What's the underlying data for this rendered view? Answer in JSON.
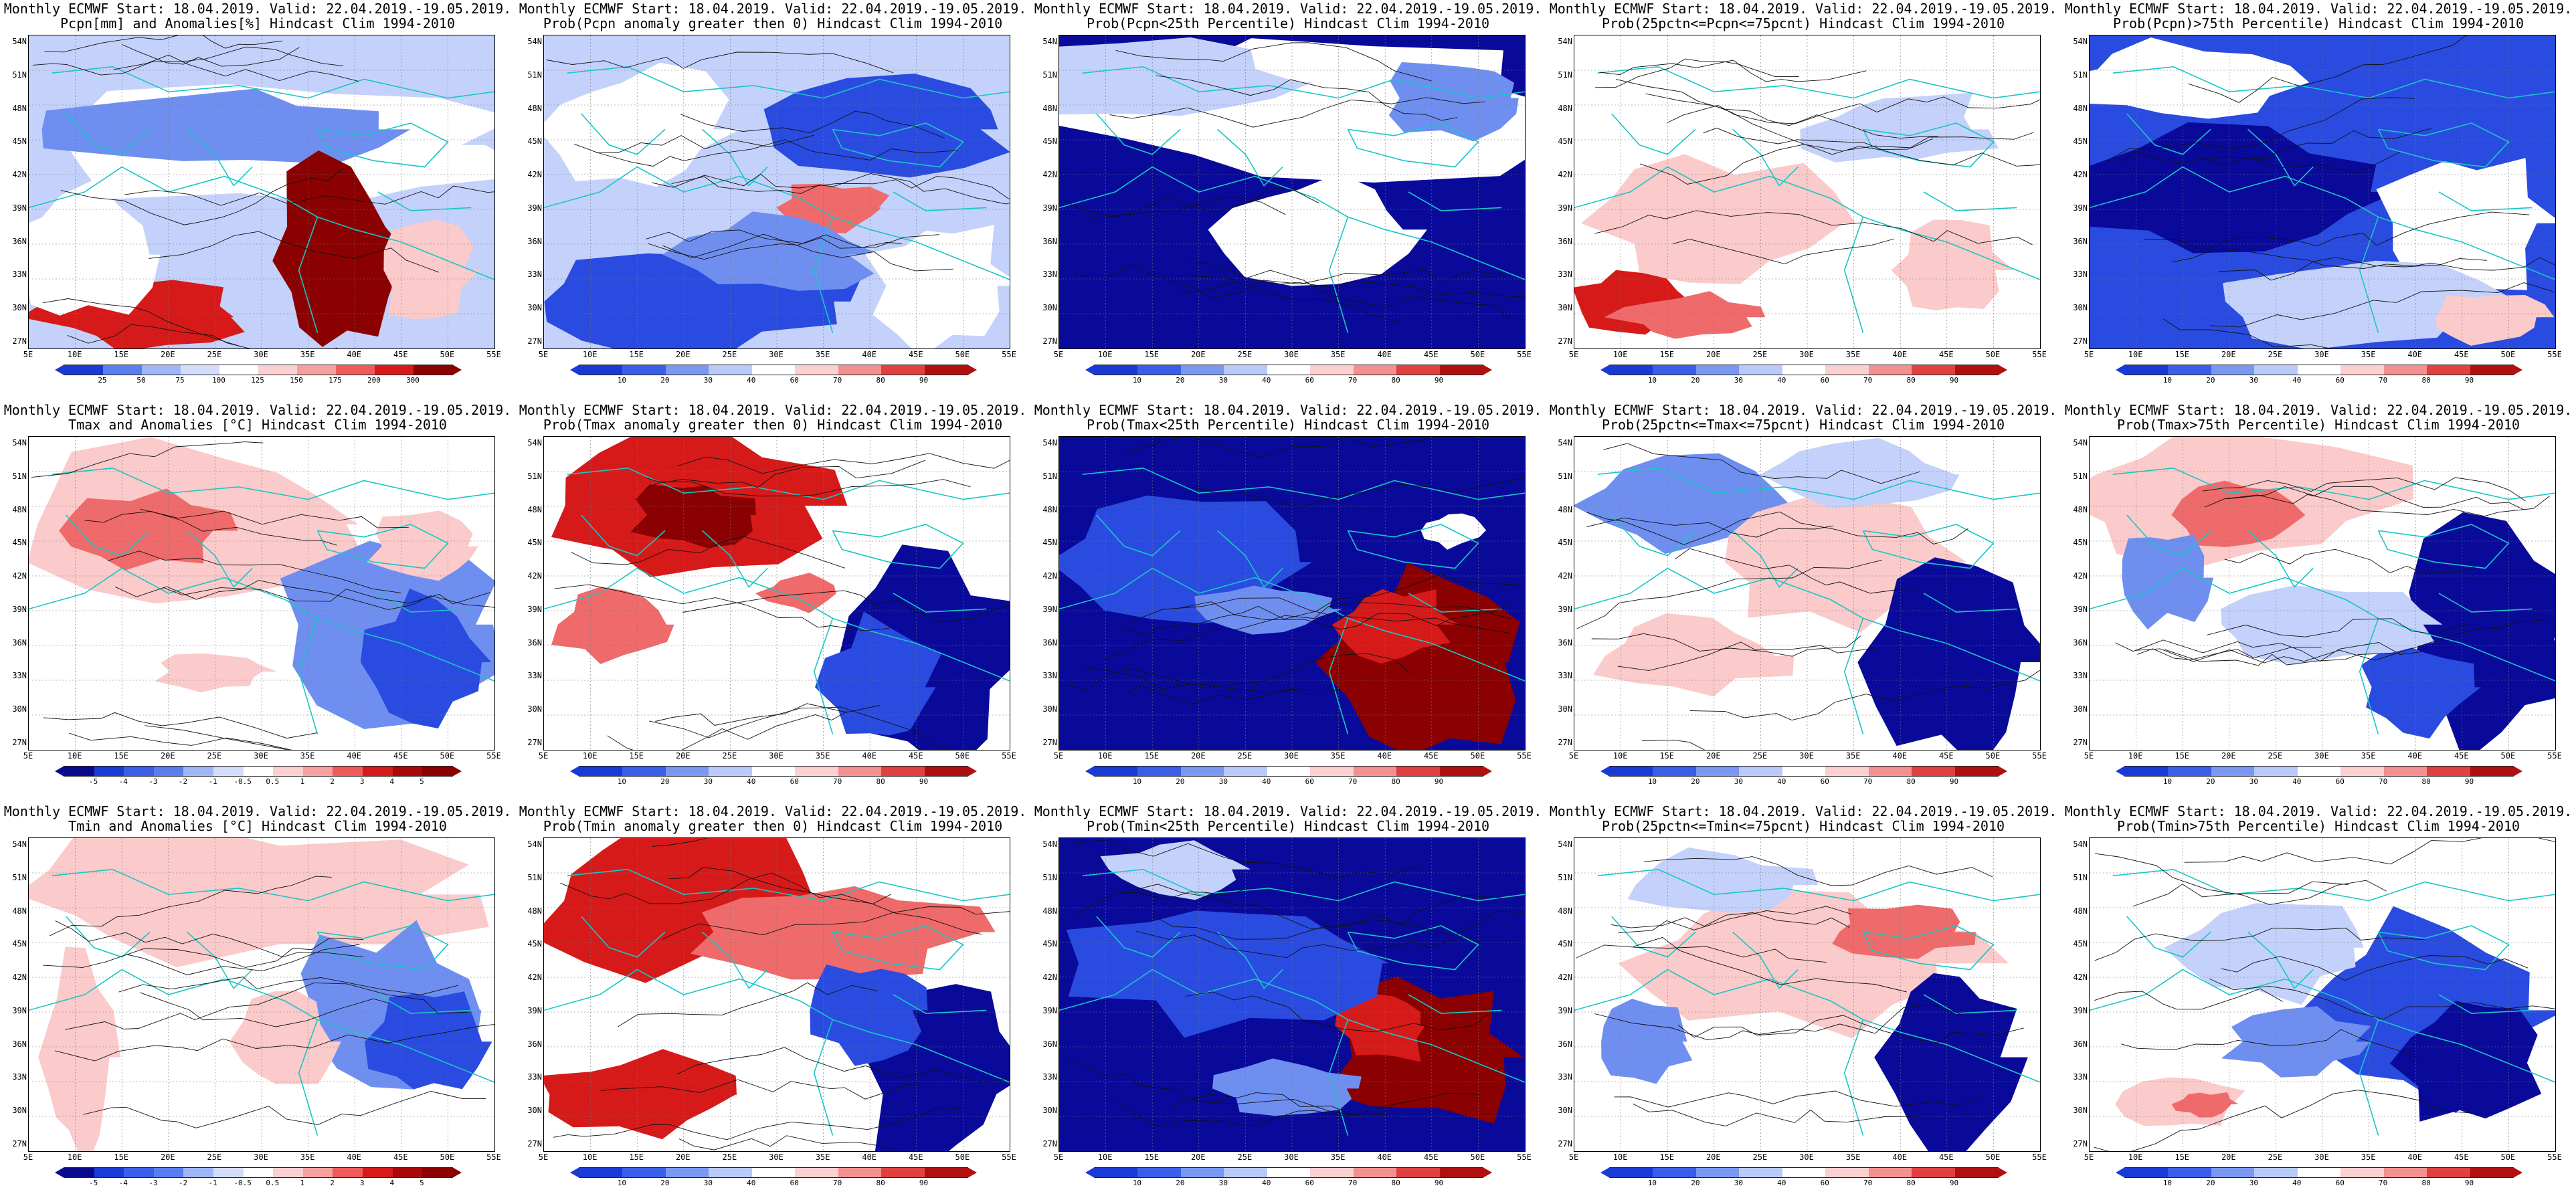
{
  "header": {
    "line1": "Monthly ECMWF Start: 18.04.2019. Valid: 22.04.2019.-19.05.2019."
  },
  "axes": {
    "lat_ticks": [
      "54N",
      "51N",
      "48N",
      "45N",
      "42N",
      "39N",
      "36N",
      "33N",
      "30N",
      "27N"
    ],
    "lon_ticks": [
      "5E",
      "10E",
      "15E",
      "20E",
      "25E",
      "30E",
      "35E",
      "40E",
      "45E",
      "50E",
      "55E"
    ]
  },
  "colorbars": {
    "pcpn_anomaly": {
      "labels": [
        "25",
        "50",
        "75",
        "100",
        "125",
        "150",
        "175",
        "200",
        "300"
      ],
      "colors": [
        "#1a3ad6",
        "#5a7df0",
        "#9fb6f7",
        "#d3ddfa",
        "#ffffff",
        "#fbd0d0",
        "#f7a0a0",
        "#ef5a5a",
        "#d61a1a",
        "#8b0000"
      ]
    },
    "temp_anomaly": {
      "labels": [
        "-5",
        "-4",
        "-3",
        "-2",
        "-1",
        "-0.5",
        "0.5",
        "1",
        "2",
        "3",
        "4",
        "5"
      ],
      "colors": [
        "#0a0a8c",
        "#1a3ad6",
        "#3a5ee8",
        "#5a7df0",
        "#9fb6f7",
        "#d3ddfa",
        "#ffffff",
        "#fbd0d0",
        "#f7a0a0",
        "#ef5a5a",
        "#d61a1a",
        "#a80808",
        "#8b0000"
      ]
    },
    "probability": {
      "labels": [
        "10",
        "20",
        "30",
        "40",
        "60",
        "70",
        "80",
        "90"
      ],
      "colors": [
        "#1a3ad6",
        "#3a5ee8",
        "#7a98f2",
        "#b9c9f8",
        "#ffffff",
        "#fbd0d0",
        "#f39090",
        "#e04040",
        "#b01010"
      ]
    }
  },
  "panels": [
    {
      "title2": "Pcpn[mm] and Anomalies[%] Hindcast Clim 1994-2010",
      "cbar": "pcpn_anomaly",
      "theme": "pcpn_anom"
    },
    {
      "title2": "Prob(Pcpn anomaly greater then 0) Hindcast Clim 1994-2010",
      "cbar": "probability",
      "theme": "pcpn_pos"
    },
    {
      "title2": "Prob(Pcpn<25th Percentile) Hindcast Clim 1994-2010",
      "cbar": "probability",
      "theme": "pcpn_low"
    },
    {
      "title2": "Prob(25pctn<=Pcpn<=75pcnt) Hindcast Clim 1994-2010",
      "cbar": "probability",
      "theme": "pcpn_mid"
    },
    {
      "title2": "Prob(Pcpn)>75th Percentile) Hindcast Clim 1994-2010",
      "cbar": "probability",
      "theme": "pcpn_high"
    },
    {
      "title2": "Tmax and Anomalies [°C] Hindcast Clim 1994-2010",
      "cbar": "temp_anomaly",
      "theme": "tmax_anom"
    },
    {
      "title2": "Prob(Tmax anomaly greater then 0) Hindcast Clim 1994-2010",
      "cbar": "probability",
      "theme": "tmax_pos"
    },
    {
      "title2": "Prob(Tmax<25th Percentile) Hindcast Clim 1994-2010",
      "cbar": "probability",
      "theme": "tmax_low"
    },
    {
      "title2": "Prob(25pctn<=Tmax<=75pcnt) Hindcast Clim 1994-2010",
      "cbar": "probability",
      "theme": "tmax_mid"
    },
    {
      "title2": "Prob(Tmax>75th Percentile) Hindcast Clim 1994-2010",
      "cbar": "probability",
      "theme": "tmax_high"
    },
    {
      "title2": "Tmin and Anomalies [°C] Hindcast Clim 1994-2010",
      "cbar": "temp_anomaly",
      "theme": "tmin_anom"
    },
    {
      "title2": "Prob(Tmin anomaly greater then 0) Hindcast Clim 1994-2010",
      "cbar": "probability",
      "theme": "tmin_pos"
    },
    {
      "title2": "Prob(Tmin<25th Percentile) Hindcast Clim 1994-2010",
      "cbar": "probability",
      "theme": "tmin_low"
    },
    {
      "title2": "Prob(25pctn<=Tmin<=75pcnt) Hindcast Clim 1994-2010",
      "cbar": "probability",
      "theme": "tmin_mid"
    },
    {
      "title2": "Prob(Tmin>75th Percentile) Hindcast Clim 1994-2010",
      "cbar": "probability",
      "theme": "tmin_high"
    }
  ]
}
